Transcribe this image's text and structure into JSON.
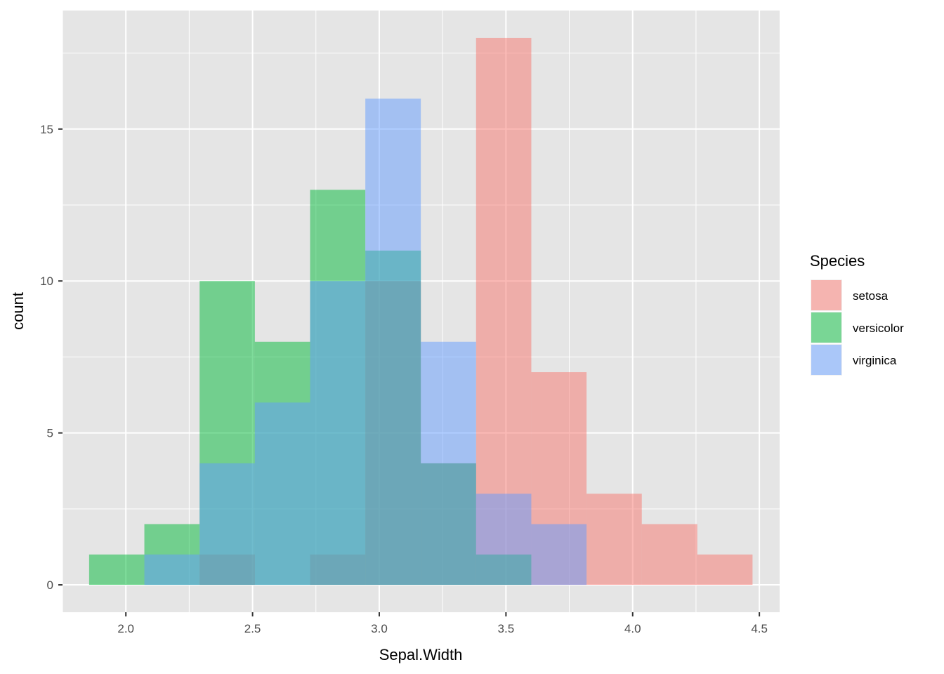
{
  "chart_data": {
    "type": "histogram",
    "xlabel": "Sepal.Width",
    "ylabel": "count",
    "xlim": [
      1.75,
      4.58
    ],
    "ylim": [
      -0.9,
      18.9
    ],
    "x_ticks": [
      2.0,
      2.5,
      3.0,
      3.5,
      4.0,
      4.5
    ],
    "x_tick_labels": [
      "2.0",
      "2.5",
      "3.0",
      "3.5",
      "4.0",
      "4.5"
    ],
    "y_ticks": [
      0,
      5,
      10,
      15
    ],
    "y_tick_labels": [
      "0",
      "5",
      "10",
      "15"
    ],
    "bin_edges": [
      1.855,
      2.073,
      2.291,
      2.509,
      2.727,
      2.945,
      3.164,
      3.382,
      3.6,
      3.818,
      4.036,
      4.255,
      4.473
    ],
    "series": [
      {
        "name": "setosa",
        "color": "#F8766D",
        "counts": [
          0,
          0,
          1,
          0,
          1,
          10,
          4,
          18,
          7,
          3,
          2,
          1
        ]
      },
      {
        "name": "versicolor",
        "color": "#00BA38",
        "counts": [
          1,
          2,
          10,
          8,
          13,
          11,
          4,
          1,
          0,
          0,
          0,
          0
        ]
      },
      {
        "name": "virginica",
        "color": "#619CFF",
        "counts": [
          0,
          1,
          4,
          6,
          10,
          16,
          8,
          3,
          2,
          0,
          0,
          0
        ]
      }
    ],
    "fill_opacity": 0.5,
    "legend": {
      "title": "Species",
      "position": "right"
    },
    "grid": true,
    "panel_background": "#E5E5E5",
    "grid_color": "#FFFFFF"
  }
}
